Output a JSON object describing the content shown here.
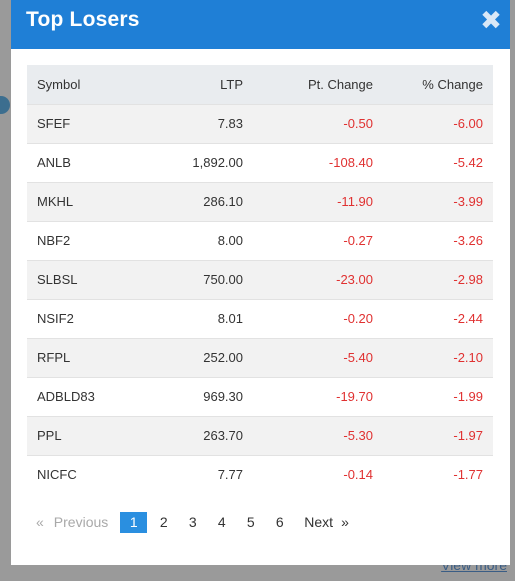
{
  "backdrop": {
    "link_text": "View more"
  },
  "modal": {
    "title": "Top Losers"
  },
  "columns": [
    "Symbol",
    "LTP",
    "Pt. Change",
    "% Change"
  ],
  "rows": [
    {
      "symbol": "SFEF",
      "ltp": "7.83",
      "pt": "-0.50",
      "pct": "-6.00"
    },
    {
      "symbol": "ANLB",
      "ltp": "1,892.00",
      "pt": "-108.40",
      "pct": "-5.42"
    },
    {
      "symbol": "MKHL",
      "ltp": "286.10",
      "pt": "-11.90",
      "pct": "-3.99"
    },
    {
      "symbol": "NBF2",
      "ltp": "8.00",
      "pt": "-0.27",
      "pct": "-3.26"
    },
    {
      "symbol": "SLBSL",
      "ltp": "750.00",
      "pt": "-23.00",
      "pct": "-2.98"
    },
    {
      "symbol": "NSIF2",
      "ltp": "8.01",
      "pt": "-0.20",
      "pct": "-2.44"
    },
    {
      "symbol": "RFPL",
      "ltp": "252.00",
      "pt": "-5.40",
      "pct": "-2.10"
    },
    {
      "symbol": "ADBLD83",
      "ltp": "969.30",
      "pt": "-19.70",
      "pct": "-1.99"
    },
    {
      "symbol": "PPL",
      "ltp": "263.70",
      "pt": "-5.30",
      "pct": "-1.97"
    },
    {
      "symbol": "NICFC",
      "ltp": "7.77",
      "pt": "-0.14",
      "pct": "-1.77"
    }
  ],
  "pagination": {
    "prev_arrow": "«",
    "prev_label": "Previous",
    "pages": [
      "1",
      "2",
      "3",
      "4",
      "5",
      "6"
    ],
    "next_label": "Next",
    "next_arrow": "»"
  },
  "colors": {
    "header_bg": "#1f7fd6",
    "negative": "#e03131",
    "active_page": "#2a8fe0"
  }
}
